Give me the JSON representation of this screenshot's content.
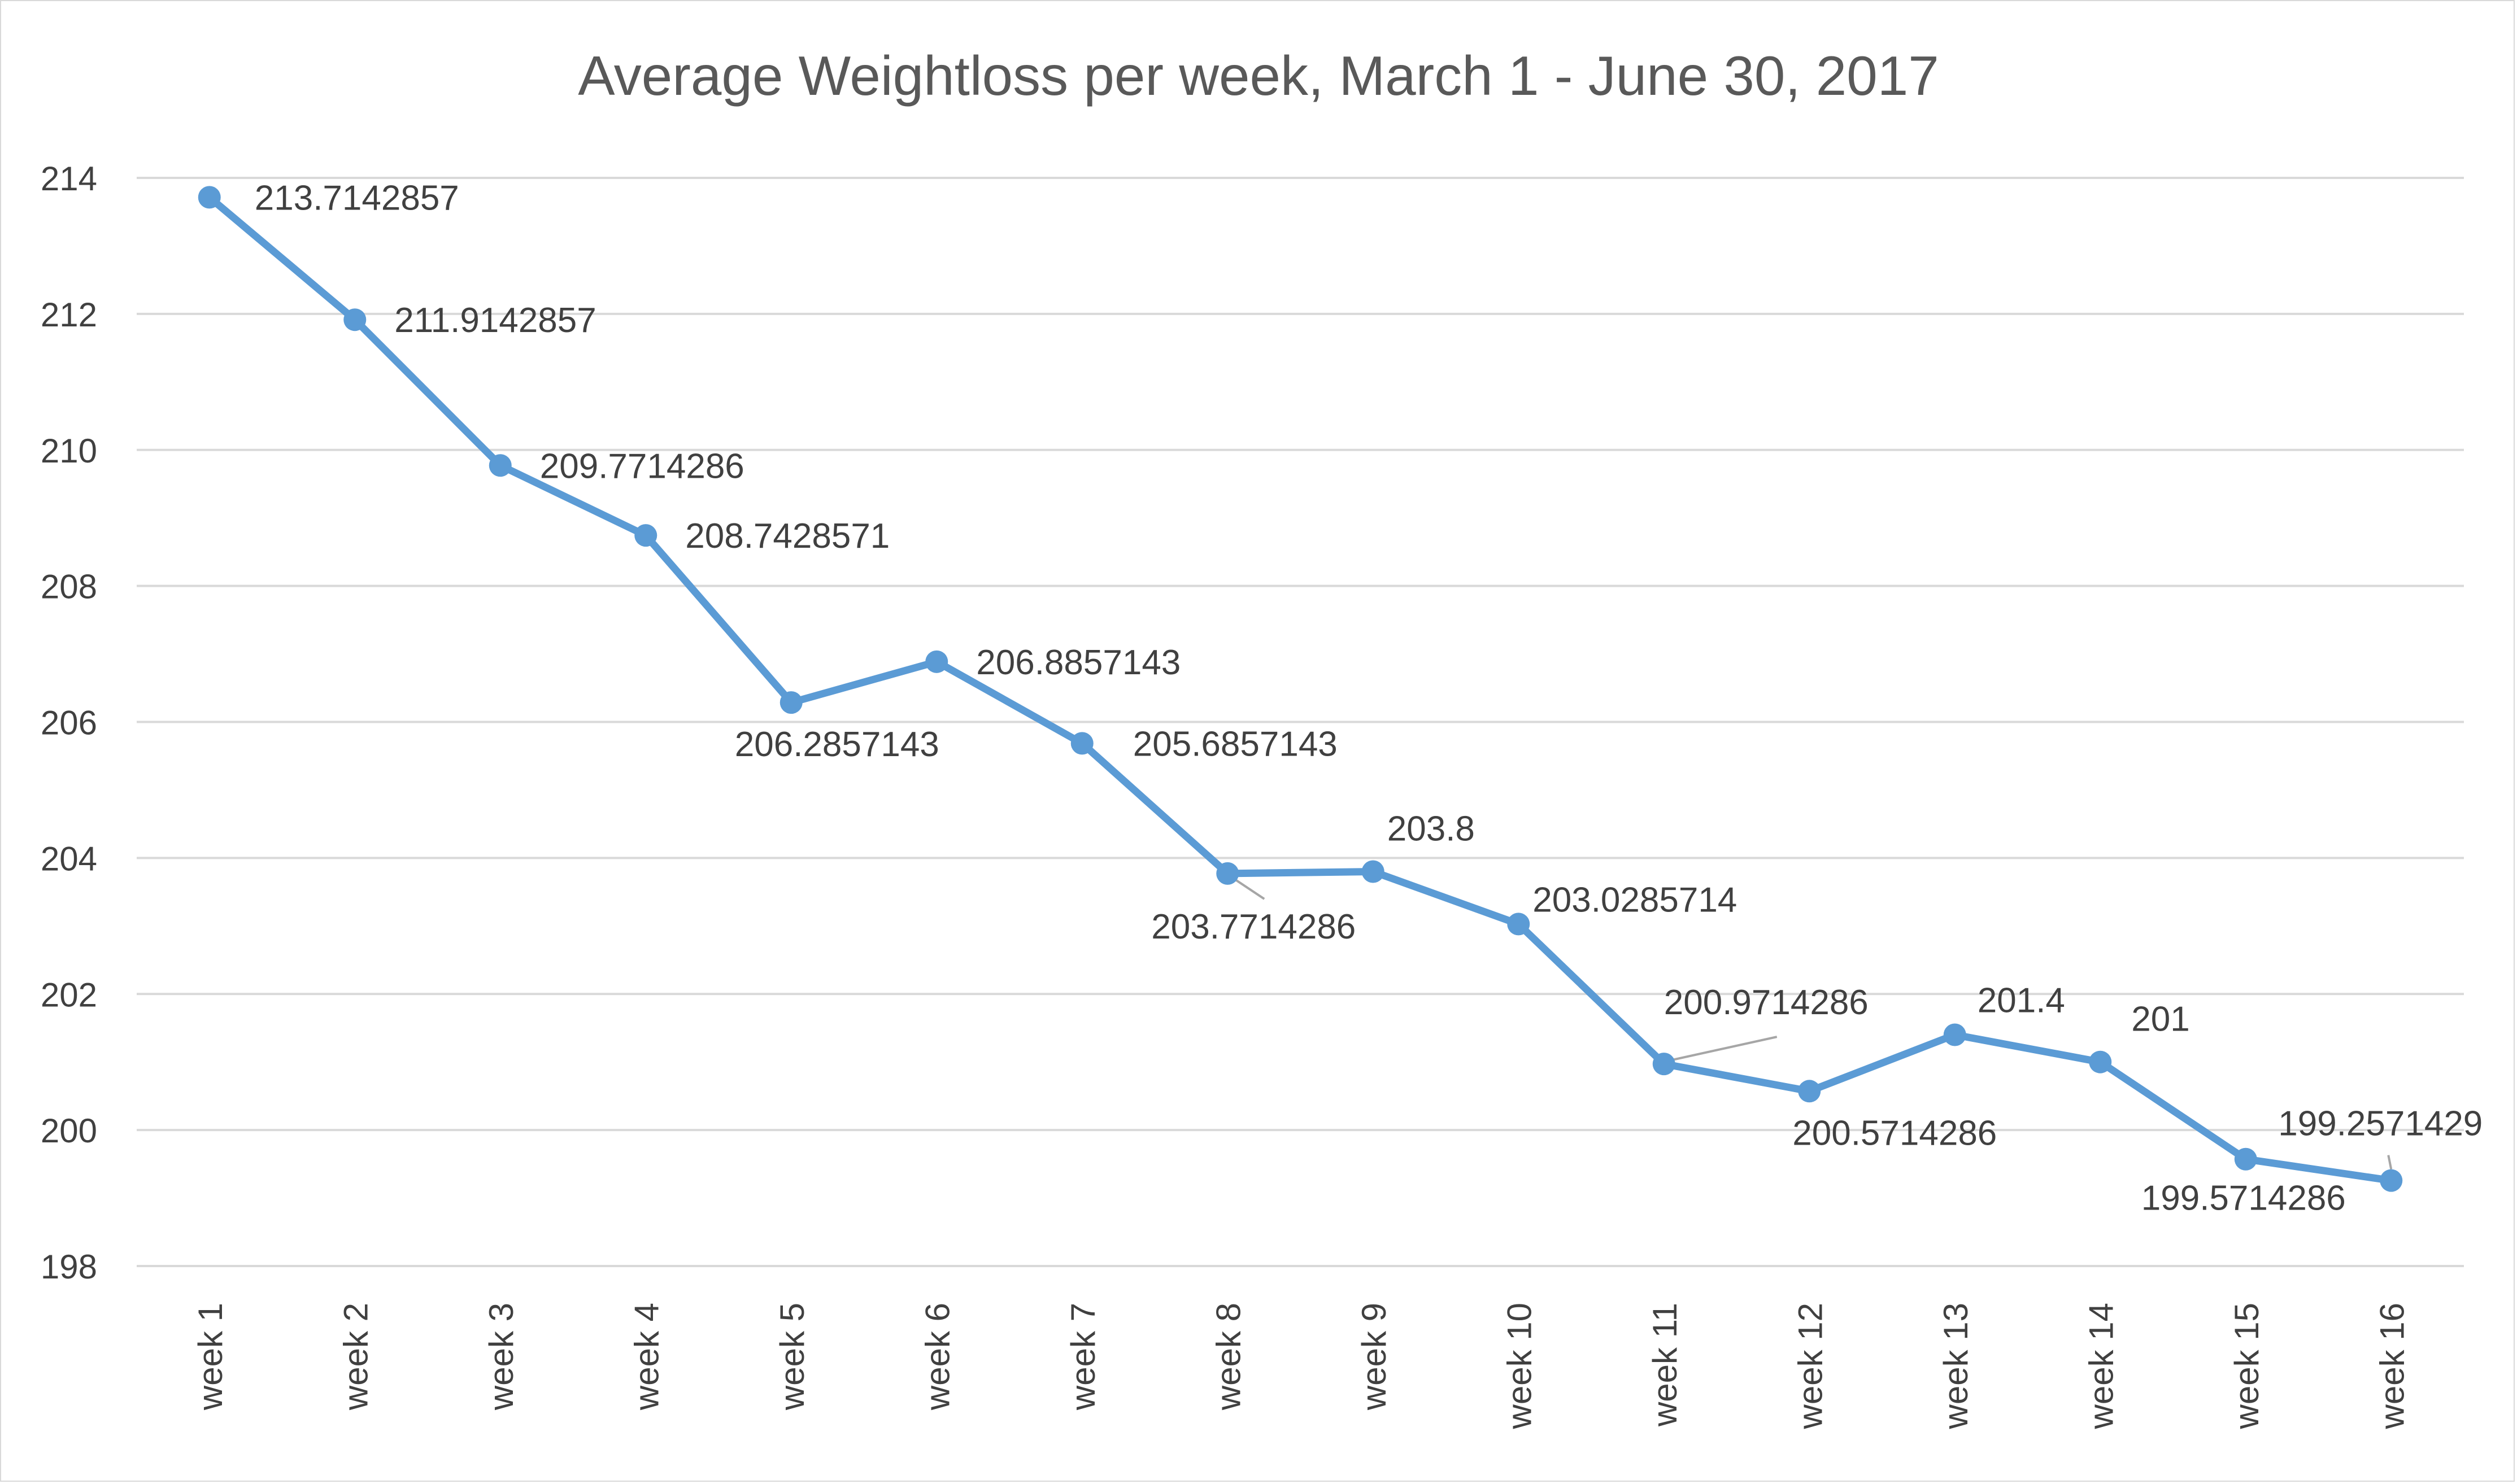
{
  "chart_data": {
    "type": "line",
    "title": "Average Weightloss per week, March 1 - June 30, 2017",
    "xlabel": "",
    "ylabel": "",
    "categories": [
      "week 1",
      "week 2",
      "week 3",
      "week 4",
      "week 5",
      "week 6",
      "week 7",
      "week 8",
      "week 9",
      "week 10",
      "week 11",
      "week 12",
      "week 13",
      "week 14",
      "week 15",
      "week 16"
    ],
    "series": [
      {
        "values": [
          213.7142857,
          211.9142857,
          209.7714286,
          208.7428571,
          206.2857143,
          206.8857143,
          205.6857143,
          203.7714286,
          203.8,
          203.0285714,
          200.9714286,
          200.5714286,
          201.4,
          201,
          199.5714286,
          199.2571429
        ],
        "data_labels": [
          "213.7142857",
          "211.9142857",
          "209.7714286",
          "208.7428571",
          "206.2857143",
          "206.8857143",
          "205.6857143",
          "203.7714286",
          "203.8",
          "203.0285714",
          "200.9714286",
          "200.5714286",
          "201.4",
          "201",
          "199.5714286",
          "199.2571429"
        ],
        "color": "#5b9bd5"
      }
    ],
    "ylim": [
      198,
      214
    ],
    "yticks": [
      "198",
      "200",
      "202",
      "204",
      "206",
      "208",
      "210",
      "212",
      "214"
    ],
    "grid": true,
    "legend": "none",
    "colors": {
      "line": "#5b9bd5",
      "grid": "#d9d9d9",
      "text": "#404040",
      "title": "#595959",
      "leader": "#a6a6a6"
    }
  }
}
